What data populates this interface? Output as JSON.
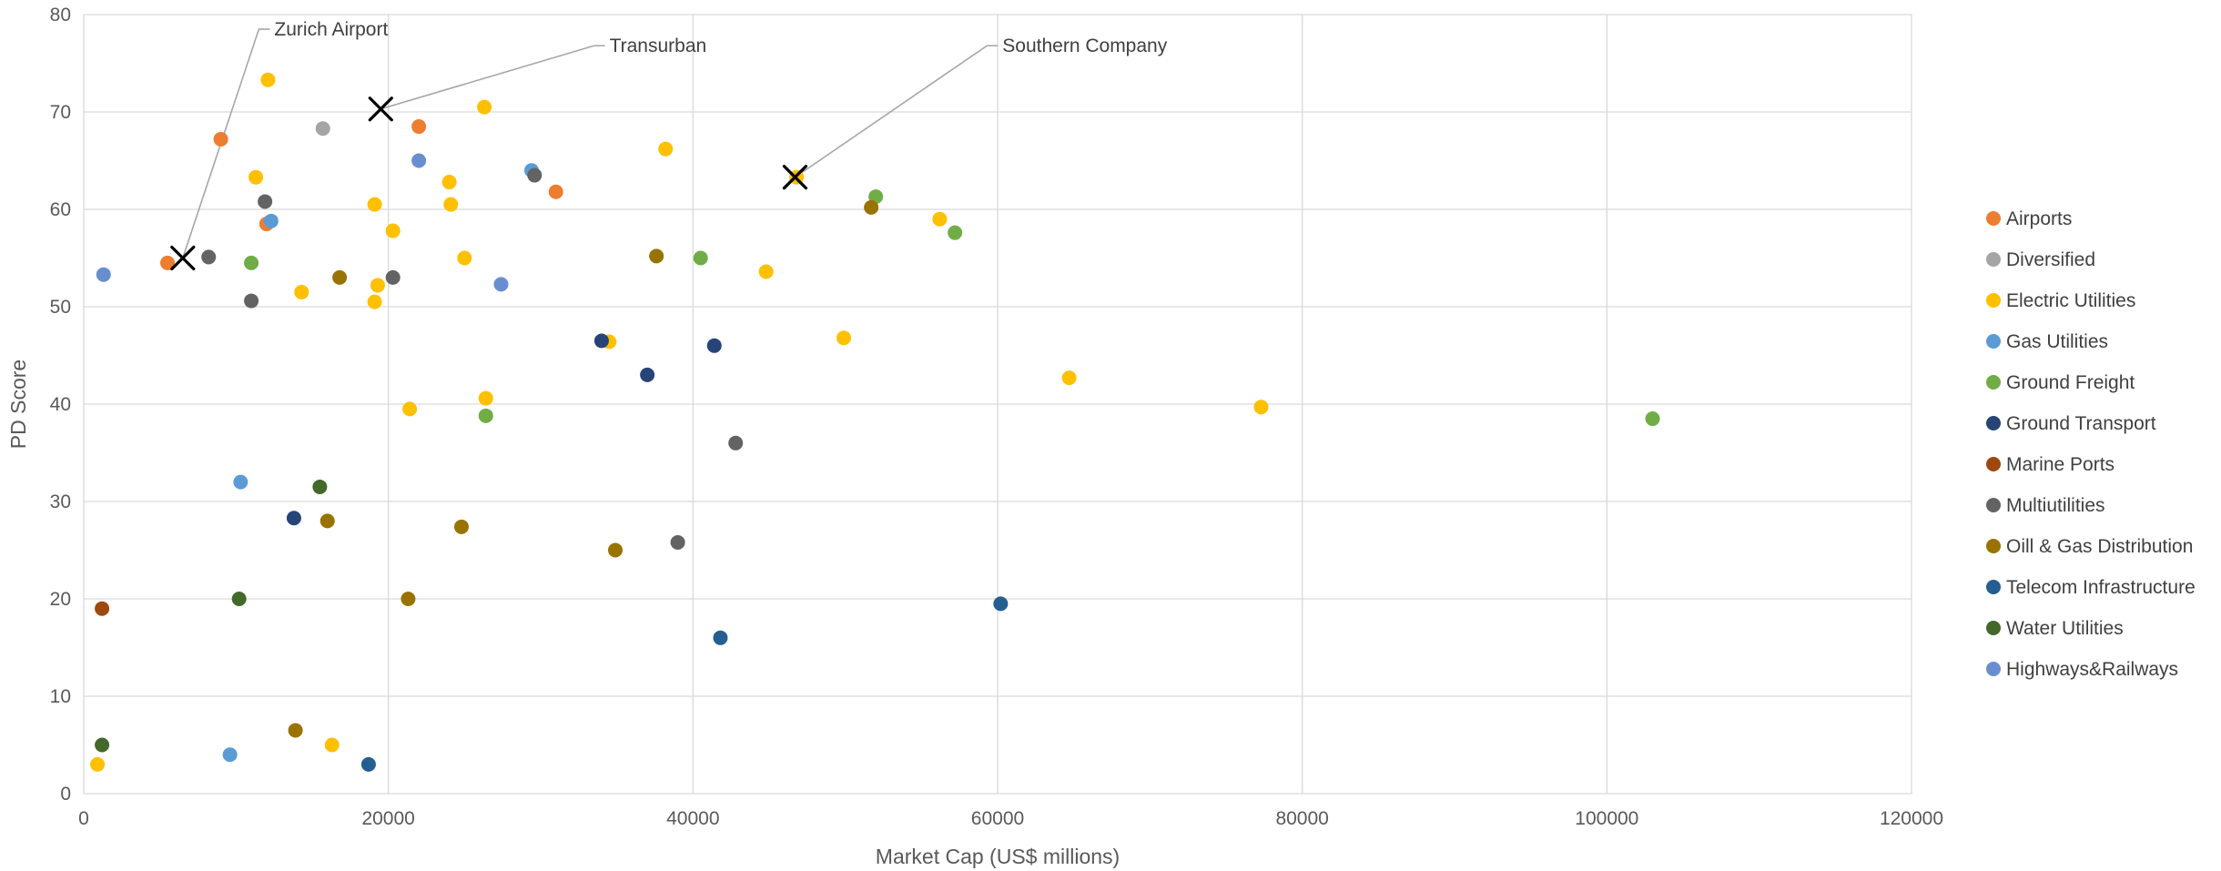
{
  "chart_data": {
    "type": "scatter",
    "title": "",
    "xlabel": "Market Cap (US$ millions)",
    "ylabel": "PD Score",
    "xlim": [
      0,
      120000
    ],
    "ylim": [
      0,
      80
    ],
    "xticks": [
      "0",
      "20000",
      "40000",
      "60000",
      "80000",
      "100000",
      "120000"
    ],
    "yticks": [
      "0",
      "10",
      "20",
      "30",
      "40",
      "50",
      "60",
      "70",
      "80"
    ],
    "grid": true,
    "legend_position": "right",
    "series": [
      {
        "name": "Airports",
        "color": "#ED7D31",
        "points": [
          [
            5500,
            54.5
          ],
          [
            9000,
            67.2
          ],
          [
            12000,
            58.5
          ],
          [
            22000,
            68.5
          ],
          [
            31000,
            61.8
          ]
        ]
      },
      {
        "name": "Diversified",
        "color": "#A5A5A5",
        "points": [
          [
            15700,
            68.3
          ]
        ]
      },
      {
        "name": "Electric Utilities",
        "color": "#FFC000",
        "points": [
          [
            900,
            3
          ],
          [
            11300,
            63.3
          ],
          [
            12100,
            73.3
          ],
          [
            14300,
            51.5
          ],
          [
            16300,
            5
          ],
          [
            19100,
            60.5
          ],
          [
            19100,
            50.5
          ],
          [
            19300,
            52.2
          ],
          [
            20300,
            57.8
          ],
          [
            21400,
            39.5
          ],
          [
            24000,
            62.8
          ],
          [
            24100,
            60.5
          ],
          [
            25000,
            55
          ],
          [
            26300,
            70.5
          ],
          [
            26400,
            40.6
          ],
          [
            34500,
            46.4
          ],
          [
            38200,
            66.2
          ],
          [
            44800,
            53.6
          ],
          [
            46800,
            63.3
          ],
          [
            49900,
            46.8
          ],
          [
            56200,
            59
          ],
          [
            64700,
            42.7
          ],
          [
            77300,
            39.7
          ]
        ]
      },
      {
        "name": "Gas Utilities",
        "color": "#5B9BD5",
        "points": [
          [
            9600,
            4
          ],
          [
            10300,
            32
          ],
          [
            12300,
            58.8
          ],
          [
            29400,
            64
          ]
        ]
      },
      {
        "name": "Ground Freight",
        "color": "#70AD47",
        "points": [
          [
            11000,
            54.5
          ],
          [
            26400,
            38.8
          ],
          [
            40500,
            55
          ],
          [
            52000,
            61.3
          ],
          [
            57200,
            57.6
          ],
          [
            103000,
            38.5
          ]
        ]
      },
      {
        "name": "Ground Transport",
        "color": "#264478",
        "points": [
          [
            13800,
            28.3
          ],
          [
            34000,
            46.5
          ],
          [
            37000,
            43
          ],
          [
            41400,
            46
          ]
        ]
      },
      {
        "name": "Marine Ports",
        "color": "#9E480E",
        "points": [
          [
            1200,
            19
          ]
        ]
      },
      {
        "name": "Multiutilities",
        "color": "#636363",
        "points": [
          [
            8200,
            55.1
          ],
          [
            11000,
            50.6
          ],
          [
            11900,
            60.8
          ],
          [
            20300,
            53
          ],
          [
            29600,
            63.5
          ],
          [
            39000,
            25.8
          ],
          [
            42800,
            36
          ]
        ]
      },
      {
        "name": "Oill & Gas Distribution",
        "color": "#997300",
        "points": [
          [
            13900,
            6.5
          ],
          [
            16000,
            28
          ],
          [
            16800,
            53
          ],
          [
            21300,
            20
          ],
          [
            24800,
            27.4
          ],
          [
            34900,
            25
          ],
          [
            37600,
            55.2
          ],
          [
            51700,
            60.2
          ]
        ]
      },
      {
        "name": "Telecom Infrastructure",
        "color": "#255E91",
        "points": [
          [
            18700,
            3
          ],
          [
            41800,
            16
          ],
          [
            60200,
            19.5
          ]
        ]
      },
      {
        "name": "Water Utilities",
        "color": "#43682B",
        "points": [
          [
            1200,
            5
          ],
          [
            10200,
            20
          ],
          [
            15500,
            31.5
          ]
        ]
      },
      {
        "name": "Highways&Railways",
        "color": "#698ED0",
        "points": [
          [
            1300,
            53.3
          ],
          [
            22000,
            65
          ],
          [
            27400,
            52.3
          ]
        ]
      }
    ],
    "annotations": [
      {
        "label": "Zurich Airport",
        "point": [
          6500,
          55
        ],
        "label_at": [
          11500,
          78.5
        ]
      },
      {
        "label": "Transurban",
        "point": [
          19500,
          70.3
        ],
        "label_at": [
          33500,
          76.8
        ]
      },
      {
        "label": "Southern Company",
        "point": [
          46700,
          63.3
        ],
        "label_at": [
          59300,
          76.8
        ]
      }
    ]
  }
}
